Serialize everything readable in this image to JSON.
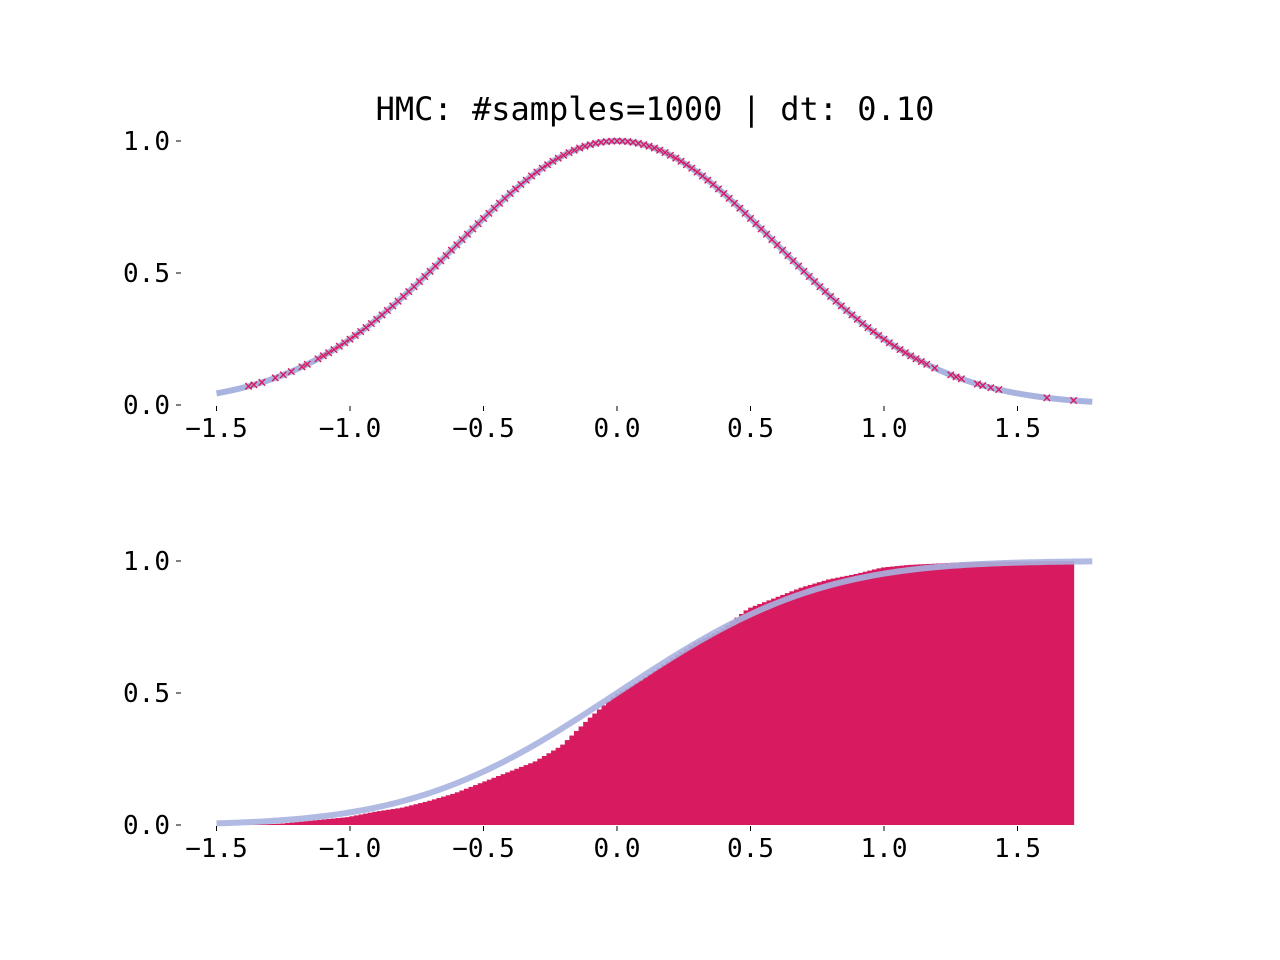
{
  "chart_data": [
    {
      "type": "scatter",
      "title": "HMC: #samples=1000 | dt: 0.10",
      "xlabel": "",
      "ylabel": "",
      "xlim": [
        -1.55,
        1.78
      ],
      "ylim": [
        0.0,
        1.0
      ],
      "x_ticks": [
        -1.5,
        -1.0,
        -0.5,
        0.0,
        0.5,
        1.0,
        1.5
      ],
      "x_tick_labels": [
        "−1.5",
        "−1.0",
        "−0.5",
        "0.0",
        "0.5",
        "1.0",
        "1.5"
      ],
      "y_ticks": [
        0.0,
        0.5,
        1.0
      ],
      "y_tick_labels": [
        "0.0",
        "0.5",
        "1.0"
      ],
      "grid": false,
      "series": [
        {
          "kind": "line",
          "function": "unnormalized-gaussian",
          "x_range": [
            -1.5,
            1.78
          ],
          "color": "#a9b3e0"
        },
        {
          "kind": "scatter",
          "marker": "x",
          "color": "#d81b60",
          "x": [
            -1.38,
            -1.36,
            -1.33,
            -1.28,
            -1.25,
            -1.22,
            -1.18,
            -1.16,
            -1.12,
            -1.1,
            -1.08,
            -1.06,
            -1.04,
            -1.02,
            -1.0,
            -0.98,
            -0.96,
            -0.94,
            -0.92,
            -0.9,
            -0.88,
            -0.86,
            -0.84,
            -0.82,
            -0.8,
            -0.78,
            -0.76,
            -0.74,
            -0.72,
            -0.7,
            -0.68,
            -0.66,
            -0.64,
            -0.62,
            -0.6,
            -0.58,
            -0.56,
            -0.54,
            -0.52,
            -0.5,
            -0.48,
            -0.46,
            -0.44,
            -0.42,
            -0.4,
            -0.38,
            -0.36,
            -0.34,
            -0.32,
            -0.3,
            -0.28,
            -0.26,
            -0.24,
            -0.22,
            -0.2,
            -0.18,
            -0.16,
            -0.14,
            -0.12,
            -0.1,
            -0.08,
            -0.06,
            -0.04,
            -0.02,
            0.0,
            0.02,
            0.04,
            0.06,
            0.08,
            0.1,
            0.12,
            0.14,
            0.16,
            0.18,
            0.2,
            0.22,
            0.24,
            0.26,
            0.28,
            0.3,
            0.32,
            0.34,
            0.36,
            0.38,
            0.4,
            0.42,
            0.44,
            0.46,
            0.48,
            0.5,
            0.52,
            0.54,
            0.56,
            0.58,
            0.6,
            0.62,
            0.64,
            0.66,
            0.68,
            0.7,
            0.72,
            0.74,
            0.76,
            0.78,
            0.8,
            0.82,
            0.84,
            0.86,
            0.88,
            0.9,
            0.92,
            0.94,
            0.96,
            0.98,
            1.0,
            1.02,
            1.04,
            1.06,
            1.08,
            1.1,
            1.12,
            1.14,
            1.16,
            1.19,
            1.25,
            1.27,
            1.29,
            1.35,
            1.37,
            1.4,
            1.43,
            1.61,
            1.71
          ]
        }
      ]
    },
    {
      "type": "histogram",
      "title": "",
      "xlabel": "",
      "ylabel": "",
      "xlim": [
        -1.55,
        1.78
      ],
      "ylim": [
        0.0,
        1.0
      ],
      "x_ticks": [
        -1.5,
        -1.0,
        -0.5,
        0.0,
        0.5,
        1.0,
        1.5
      ],
      "x_tick_labels": [
        "−1.5",
        "−1.0",
        "−0.5",
        "0.0",
        "0.5",
        "1.0",
        "1.5"
      ],
      "y_ticks": [
        0.0,
        0.5,
        1.0
      ],
      "y_tick_labels": [
        "0.0",
        "0.5",
        "1.0"
      ],
      "grid": false,
      "cumulative": true,
      "bar_color": "#d81b60",
      "line_color": "#a9b3e0",
      "empirical_cdf": {
        "x": [
          -1.38,
          -1.25,
          -1.1,
          -1.0,
          -0.9,
          -0.8,
          -0.7,
          -0.6,
          -0.5,
          -0.4,
          -0.3,
          -0.2,
          -0.1,
          0.0,
          0.1,
          0.2,
          0.3,
          0.4,
          0.5,
          0.6,
          0.7,
          0.8,
          0.9,
          1.0,
          1.1,
          1.2,
          1.3,
          1.4,
          1.5,
          1.6,
          1.71
        ],
        "y": [
          0.0,
          0.005,
          0.02,
          0.03,
          0.05,
          0.065,
          0.09,
          0.12,
          0.16,
          0.2,
          0.24,
          0.3,
          0.4,
          0.49,
          0.55,
          0.62,
          0.69,
          0.74,
          0.82,
          0.86,
          0.9,
          0.93,
          0.95,
          0.975,
          0.985,
          0.99,
          0.995,
          0.997,
          0.998,
          0.999,
          1.0
        ]
      },
      "cdf_line": {
        "function": "normal-cdf",
        "x_range": [
          -1.5,
          1.78
        ]
      }
    }
  ]
}
